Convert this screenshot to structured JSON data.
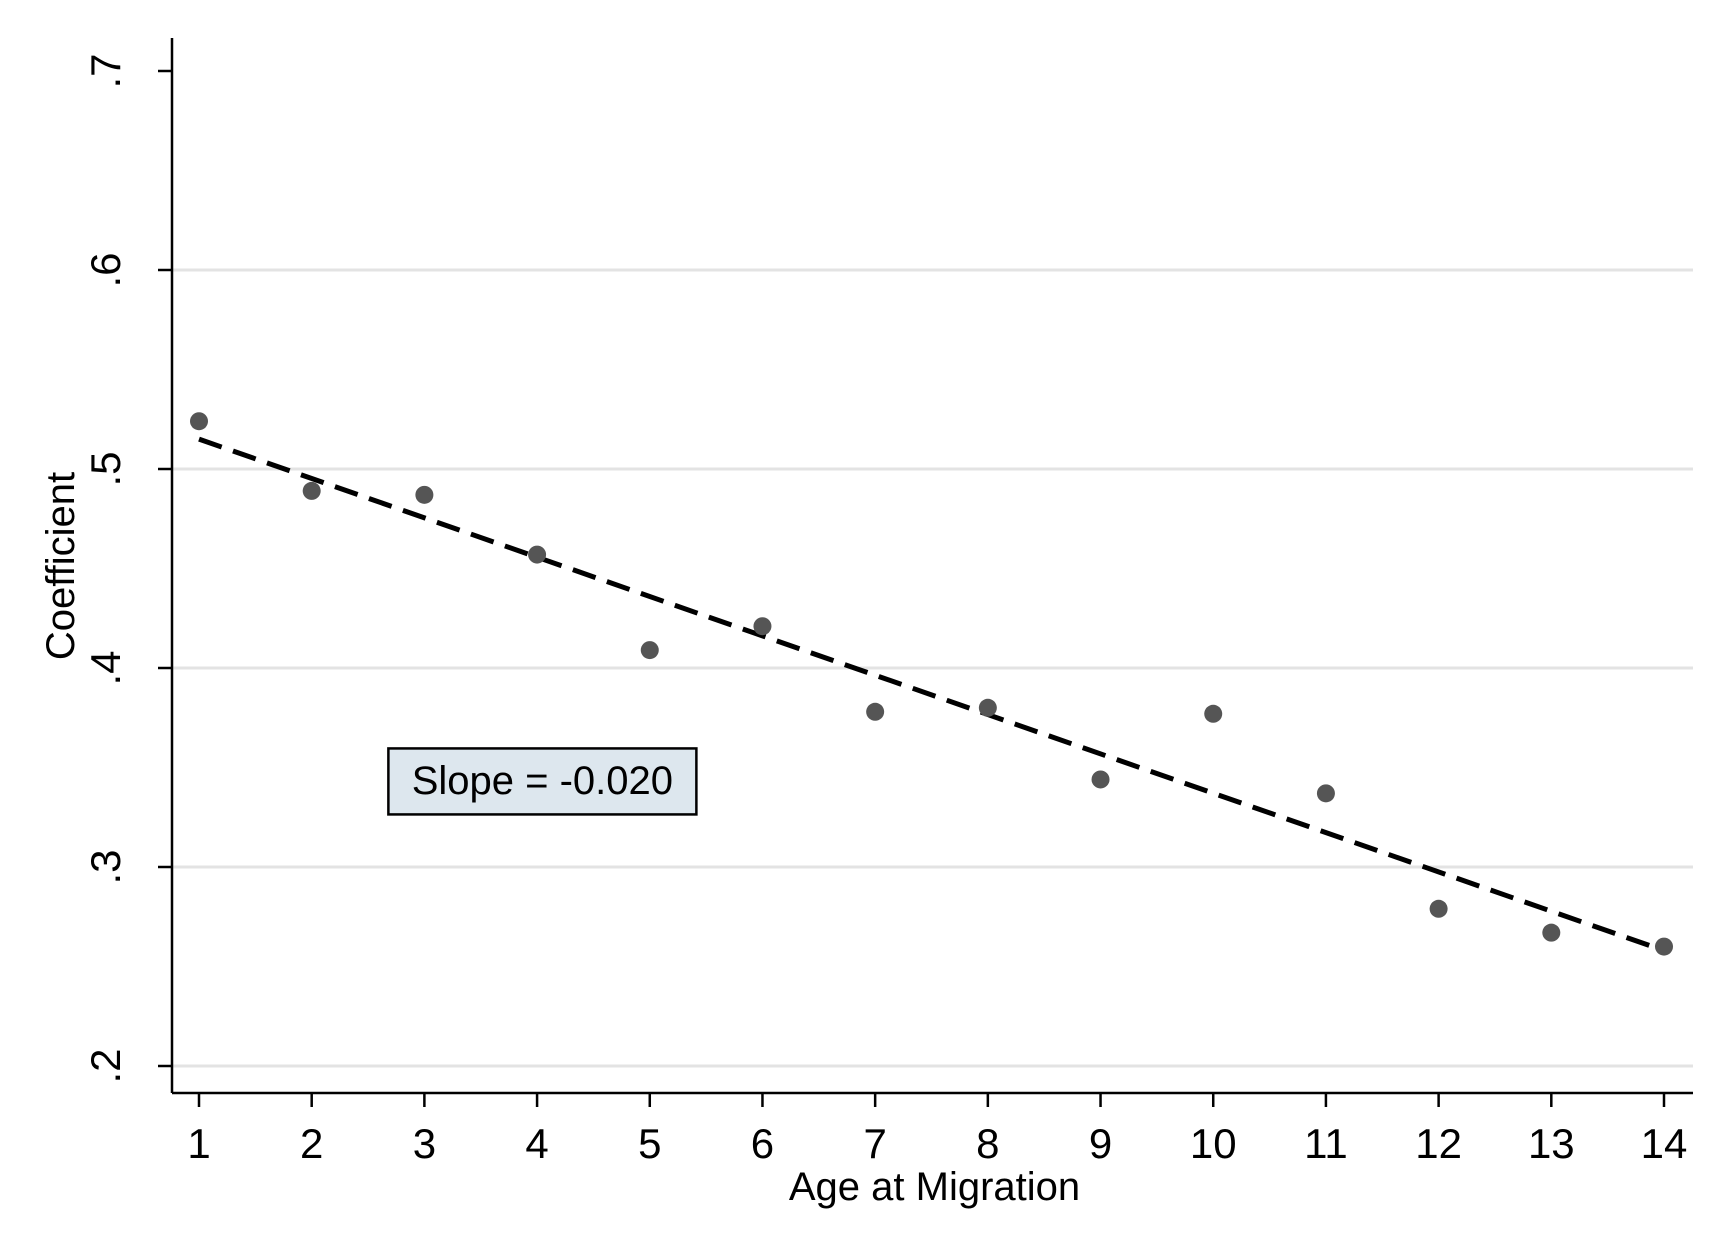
{
  "chart_data": {
    "type": "scatter",
    "xlabel": "Age at Migration",
    "ylabel": "Coefficient",
    "xlim": [
      1,
      14
    ],
    "ylim": [
      0.2,
      0.7
    ],
    "x_ticks": [
      {
        "value": 1,
        "label": "1"
      },
      {
        "value": 2,
        "label": "2"
      },
      {
        "value": 3,
        "label": "3"
      },
      {
        "value": 4,
        "label": "4"
      },
      {
        "value": 5,
        "label": "5"
      },
      {
        "value": 6,
        "label": "6"
      },
      {
        "value": 7,
        "label": "7"
      },
      {
        "value": 8,
        "label": "8"
      },
      {
        "value": 9,
        "label": "9"
      },
      {
        "value": 10,
        "label": "10"
      },
      {
        "value": 11,
        "label": "11"
      },
      {
        "value": 12,
        "label": "12"
      },
      {
        "value": 13,
        "label": "13"
      },
      {
        "value": 14,
        "label": "14"
      }
    ],
    "y_ticks": [
      {
        "value": 0.2,
        "label": ".2"
      },
      {
        "value": 0.3,
        "label": ".3"
      },
      {
        "value": 0.4,
        "label": ".4"
      },
      {
        "value": 0.5,
        "label": ".5"
      },
      {
        "value": 0.6,
        "label": ".6"
      },
      {
        "value": 0.7,
        "label": ".7"
      }
    ],
    "grid": true,
    "series": [
      {
        "points": [
          {
            "x": 1,
            "y": 0.524
          },
          {
            "x": 2,
            "y": 0.489
          },
          {
            "x": 3,
            "y": 0.487
          },
          {
            "x": 4,
            "y": 0.457
          },
          {
            "x": 5,
            "y": 0.409
          },
          {
            "x": 6,
            "y": 0.421
          },
          {
            "x": 7,
            "y": 0.378
          },
          {
            "x": 8,
            "y": 0.38
          },
          {
            "x": 9,
            "y": 0.344
          },
          {
            "x": 10,
            "y": 0.377
          },
          {
            "x": 11,
            "y": 0.337
          },
          {
            "x": 12,
            "y": 0.279
          },
          {
            "x": 13,
            "y": 0.267
          },
          {
            "x": 14,
            "y": 0.26
          }
        ],
        "color": "#555555"
      }
    ],
    "fit_line": {
      "style": "dashed",
      "color": "#000000",
      "start": {
        "x": 1,
        "y": 0.515
      },
      "end": {
        "x": 14,
        "y": 0.258
      }
    },
    "annotation": {
      "text": "Slope = -0.020",
      "x": 3.0,
      "y": 0.343,
      "background": "#dde7ee",
      "border": "#000000"
    },
    "colors": {
      "gridline": "#e3e3e3",
      "axis": "#000000",
      "marker": "#555555"
    }
  }
}
